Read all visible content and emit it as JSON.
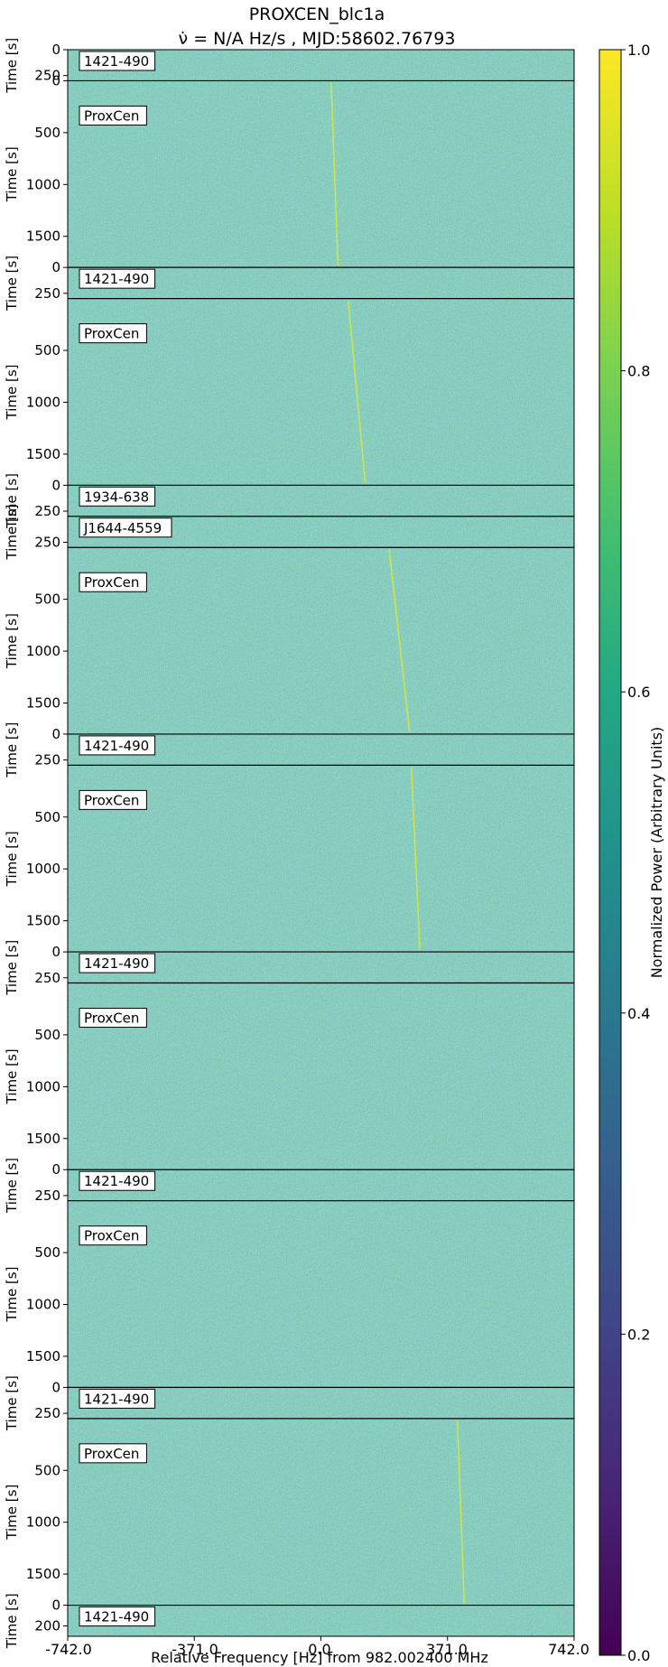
{
  "chart_data": {
    "type": "heatmap",
    "title": "PROXCEN_blc1a",
    "subtitle": "ν̇ = N/A Hz/s , MJD:58602.76793",
    "xlabel": "Relative Frequency [Hz] from 982.002400 MHz",
    "ylabel": "Time [s]",
    "x_ticks": [
      "-742.0",
      "-371.0",
      "0.0",
      "371.0",
      "742.0"
    ],
    "xlim": [
      -742.0,
      742.0
    ],
    "colorbar": {
      "label": "Normalized Power (Arbitrary Units)",
      "ticks": [
        "0.0",
        "0.2",
        "0.4",
        "0.6",
        "0.8",
        "1.0"
      ],
      "range": [
        0.0,
        1.0
      ],
      "colormap": "viridis"
    },
    "panels": [
      {
        "label": "1421-490",
        "duration_s": 300,
        "y_ticks": [
          "0",
          "250"
        ],
        "ylim": [
          0,
          300
        ],
        "drift_line": null
      },
      {
        "label": "ProxCen",
        "duration_s": 1800,
        "y_ticks": [
          "0",
          "500",
          "1000",
          "1500"
        ],
        "ylim": [
          0,
          1800
        ],
        "drift_line": {
          "freq_start_hz": 30,
          "freq_end_hz": 50
        }
      },
      {
        "label": "1421-490",
        "duration_s": 300,
        "y_ticks": [
          "0",
          "250"
        ],
        "ylim": [
          0,
          300
        ],
        "drift_line": null
      },
      {
        "label": "ProxCen",
        "duration_s": 1800,
        "y_ticks": [
          "500",
          "1000",
          "1500"
        ],
        "ylim": [
          0,
          1800
        ],
        "drift_line": {
          "freq_start_hz": 80,
          "freq_end_hz": 130
        }
      },
      {
        "label": "1934-638",
        "duration_s": 300,
        "y_ticks": [
          "0",
          "250"
        ],
        "ylim": [
          0,
          300
        ],
        "drift_line": null
      },
      {
        "label": "J1644-4559",
        "duration_s": 300,
        "y_ticks": [
          "250"
        ],
        "ylim": [
          0,
          300
        ],
        "drift_line": null
      },
      {
        "label": "ProxCen",
        "duration_s": 1800,
        "y_ticks": [
          "500",
          "1000",
          "1500"
        ],
        "ylim": [
          0,
          1800
        ],
        "drift_line": {
          "freq_start_hz": 200,
          "freq_end_hz": 260
        }
      },
      {
        "label": "1421-490",
        "duration_s": 300,
        "y_ticks": [
          "0",
          "250"
        ],
        "ylim": [
          0,
          300
        ],
        "drift_line": null
      },
      {
        "label": "ProxCen",
        "duration_s": 1800,
        "y_ticks": [
          "500",
          "1000",
          "1500"
        ],
        "ylim": [
          0,
          1800
        ],
        "drift_line": {
          "freq_start_hz": 265,
          "freq_end_hz": 290
        }
      },
      {
        "label": "1421-490",
        "duration_s": 300,
        "y_ticks": [
          "0",
          "250"
        ],
        "ylim": [
          0,
          300
        ],
        "drift_line": null
      },
      {
        "label": "ProxCen",
        "duration_s": 1800,
        "y_ticks": [
          "500",
          "1000",
          "1500"
        ],
        "ylim": [
          0,
          1800
        ],
        "drift_line": null
      },
      {
        "label": "1421-490",
        "duration_s": 300,
        "y_ticks": [
          "0",
          "250"
        ],
        "ylim": [
          0,
          300
        ],
        "drift_line": null
      },
      {
        "label": "ProxCen",
        "duration_s": 1800,
        "y_ticks": [
          "500",
          "1000",
          "1500"
        ],
        "ylim": [
          0,
          1800
        ],
        "drift_line": null
      },
      {
        "label": "1421-490",
        "duration_s": 300,
        "y_ticks": [
          "0",
          "250"
        ],
        "ylim": [
          0,
          300
        ],
        "drift_line": null
      },
      {
        "label": "ProxCen",
        "duration_s": 1800,
        "y_ticks": [
          "500",
          "1000",
          "1500"
        ],
        "ylim": [
          0,
          1800
        ],
        "drift_line": {
          "freq_start_hz": 400,
          "freq_end_hz": 420
        }
      },
      {
        "label": "1421-490",
        "duration_s": 300,
        "y_ticks": [
          "0",
          "200"
        ],
        "ylim": [
          0,
          300
        ],
        "drift_line": null
      }
    ]
  }
}
